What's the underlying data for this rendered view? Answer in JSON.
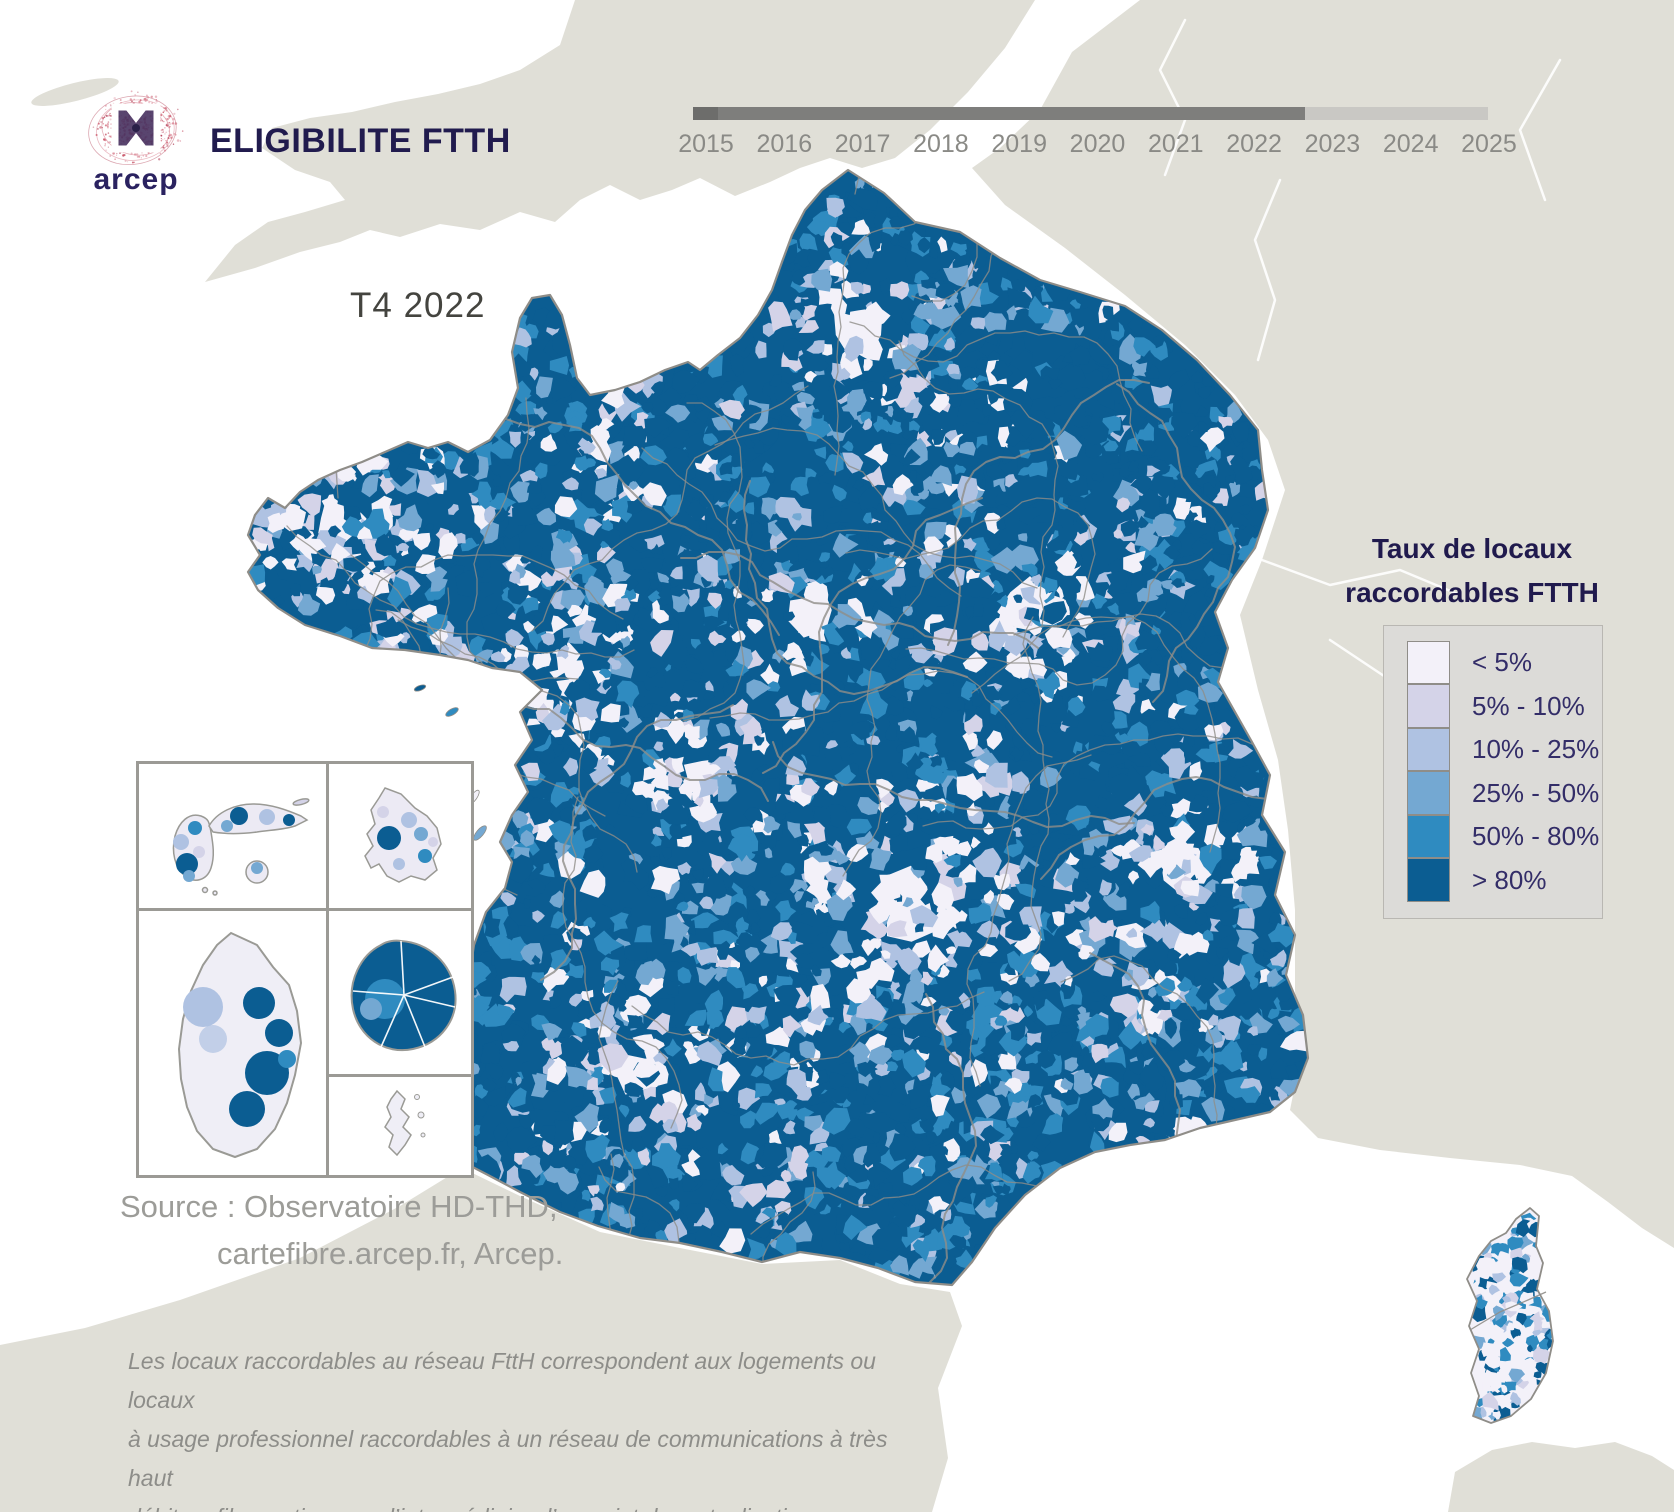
{
  "header": {
    "logo_text": "arcep",
    "title": "ELIGIBILITE FTTH"
  },
  "timeline": {
    "years": [
      "2015",
      "2016",
      "2017",
      "2018",
      "2019",
      "2020",
      "2021",
      "2022",
      "2023",
      "2024",
      "2025"
    ],
    "progress_fraction": 0.77
  },
  "period_label": "T4 2022",
  "legend": {
    "title_line1": "Taux de locaux",
    "title_line2": "raccordables FTTH",
    "items": [
      {
        "label": "< 5%",
        "color": "#f3f1f9"
      },
      {
        "label": "5% - 10%",
        "color": "#d4d3e8"
      },
      {
        "label": "10% - 25%",
        "color": "#afc2e2"
      },
      {
        "label": "25% - 50%",
        "color": "#74a8d2"
      },
      {
        "label": "50% - 80%",
        "color": "#2f8bc0"
      },
      {
        "label": "> 80%",
        "color": "#0b5d92"
      }
    ]
  },
  "source": {
    "line1": "Source : Observatoire HD-THD,",
    "line2": "cartefibre.arcep.fr, Arcep."
  },
  "footnote": {
    "line1": "Les locaux raccordables au réseau FttH correspondent aux logements ou locaux",
    "line2": "à usage professionnel raccordables à un réseau de communications à très haut",
    "line3": "débit en fibre optique par l’intermédiaire d’un point de mutualisation."
  },
  "colors": {
    "land": "#e0dfd7",
    "sea": "#ffffff",
    "map_border": "#8f8d88",
    "navy_text": "#211b4e",
    "timeline_done": "#7e7e7c",
    "timeline_rest": "#c9c8c4"
  }
}
